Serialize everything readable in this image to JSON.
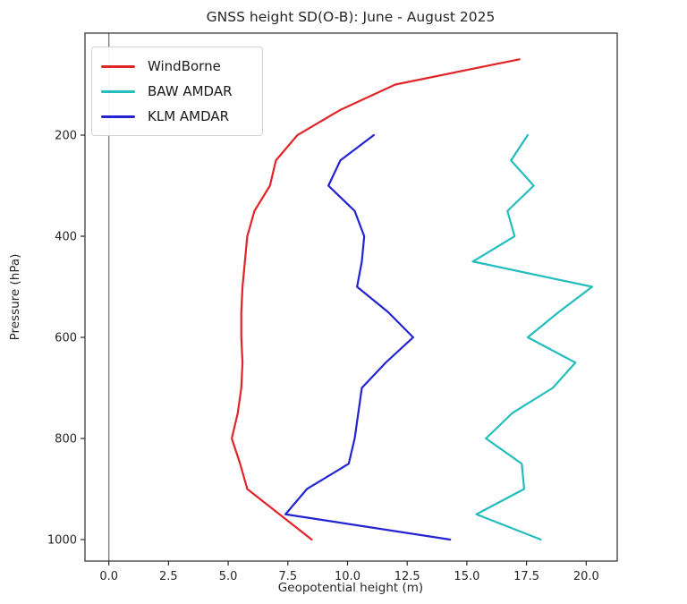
{
  "title": "GNSS height SD(O-B): June - August 2025",
  "chart_data": {
    "type": "line",
    "title": "GNSS height SD(O-B): June - August 2025",
    "xlabel": "Geopotential height (m)",
    "ylabel": "Pressure (hPa)",
    "legend_position": "upper left",
    "grid": false,
    "axes": {
      "xlim": [
        -1.0,
        21.3
      ],
      "ylim_pressure_top_bottom": [
        -1.8,
        1042.5
      ],
      "y_inverted": true,
      "x_ticks": [
        0,
        2.5,
        5,
        7.5,
        10,
        12.5,
        15,
        17.5,
        20
      ],
      "x_tick_labels": [
        "0.0",
        "2.5",
        "5.0",
        "7.5",
        "10.0",
        "12.5",
        "15.0",
        "17.5",
        "20.0"
      ],
      "y_ticks": [
        200,
        400,
        600,
        800,
        1000
      ],
      "y_tick_labels": [
        "200",
        "400",
        "600",
        "800",
        "1000"
      ]
    },
    "zero_line": {
      "x": 0,
      "color": "#7f7f7f"
    },
    "series": [
      {
        "name": "WindBorne",
        "color": "#e02428",
        "pressure_hpa": [
          50,
          100,
          150,
          200,
          250,
          300,
          350,
          400,
          450,
          500,
          550,
          600,
          650,
          700,
          750,
          800,
          850,
          900,
          950,
          1000
        ],
        "values": [
          17.2,
          12.0,
          9.7,
          7.9,
          7.0,
          6.75,
          6.1,
          5.8,
          5.7,
          5.6,
          5.55,
          5.55,
          5.6,
          5.55,
          5.4,
          5.15,
          5.5,
          5.8,
          7.15,
          8.5
        ]
      },
      {
        "name": "BAW AMDAR",
        "color": "#23bdbd",
        "pressure_hpa": [
          200,
          250,
          300,
          350,
          400,
          450,
          500,
          550,
          600,
          650,
          700,
          750,
          800,
          850,
          900,
          950,
          1000
        ],
        "values": [
          17.55,
          16.85,
          17.8,
          16.7,
          17.0,
          15.25,
          20.25,
          18.85,
          17.55,
          19.55,
          18.6,
          16.9,
          15.8,
          17.3,
          17.4,
          15.4,
          18.1
        ]
      },
      {
        "name": "KLM AMDAR",
        "color": "#2323d2",
        "pressure_hpa": [
          200,
          250,
          300,
          350,
          400,
          450,
          500,
          550,
          600,
          650,
          700,
          750,
          800,
          850,
          900,
          950,
          1000
        ],
        "values": [
          11.1,
          9.7,
          9.2,
          10.3,
          10.7,
          10.6,
          10.4,
          11.7,
          12.75,
          11.6,
          10.6,
          10.45,
          10.3,
          10.05,
          8.3,
          7.4,
          14.3
        ]
      }
    ]
  }
}
